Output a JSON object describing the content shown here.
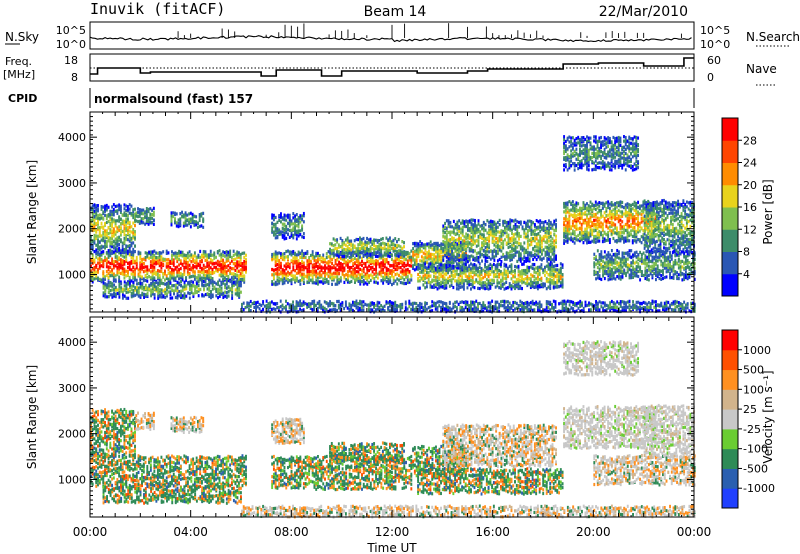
{
  "header": {
    "station": "Inuvik (fitACF)",
    "beam": "Beam 14",
    "date": "22/Mar/2010"
  },
  "noise_panel": {
    "left_label": "N.Sky",
    "right_label": "N.Search",
    "left_ticks": [
      "10^5",
      "10^0"
    ],
    "right_ticks": [
      "10^5",
      "10^0"
    ],
    "right_legend_line": "dotted"
  },
  "freq_panel": {
    "left_label_1": "Freq.",
    "left_label_2": "[MHz]",
    "right_label": "Nave",
    "left_ticks": [
      "18",
      "8"
    ],
    "right_ticks": [
      "60",
      "0"
    ]
  },
  "cpid_panel": {
    "label": "CPID",
    "program": "normalsound (fast) 157"
  },
  "colors": {
    "power": [
      "#0000ff",
      "#2a57b4",
      "#3d8c6a",
      "#7fbf4f",
      "#e8d31c",
      "#ff8c00",
      "#ff4500",
      "#ff0000"
    ],
    "velocity": [
      "#2040ff",
      "#2a5fb0",
      "#2e8b57",
      "#6acd32",
      "#c8c8c8",
      "#d2b48c",
      "#ff9020",
      "#ff5000",
      "#ff0000"
    ]
  },
  "chart_data": [
    {
      "type": "heatmap",
      "name": "power",
      "xlabel": "",
      "ylabel": "Slant Range [km]",
      "x_ticks": [
        "00:00",
        "04:00",
        "08:00",
        "12:00",
        "16:00",
        "20:00",
        "00:00"
      ],
      "y_ticks": [
        1000,
        2000,
        3000,
        4000
      ],
      "ylim": [
        180,
        4550
      ],
      "xlim_hours": [
        0,
        24
      ],
      "colorbar_label": "Power [dB]",
      "colorbar_ticks": [
        "4",
        "8",
        "12",
        "16",
        "20",
        "24",
        "28"
      ],
      "grid": false
    },
    {
      "type": "heatmap",
      "name": "velocity",
      "xlabel": "Time UT",
      "ylabel": "Slant Range [km]",
      "x_ticks": [
        "00:00",
        "04:00",
        "08:00",
        "12:00",
        "16:00",
        "20:00",
        "00:00"
      ],
      "y_ticks": [
        1000,
        2000,
        3000,
        4000
      ],
      "ylim": [
        180,
        4550
      ],
      "xlim_hours": [
        0,
        24
      ],
      "colorbar_label": "Velocity [m s⁻¹]",
      "colorbar_ticks": [
        "1000",
        "500",
        "100",
        "25",
        "-25",
        "-100",
        "-500",
        "-1000"
      ],
      "grid": false
    }
  ]
}
